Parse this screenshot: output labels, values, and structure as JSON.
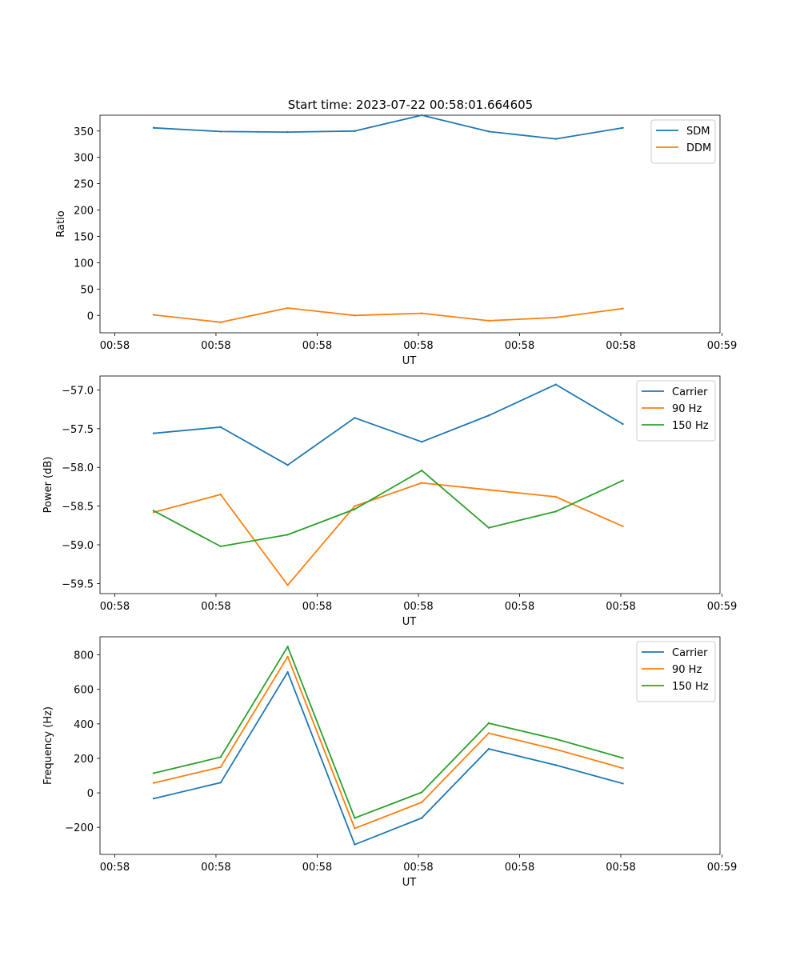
{
  "figure": {
    "title": "Start time: 2023-07-22 00:58:01.664605"
  },
  "colors": {
    "blue": "#1f77b4",
    "orange": "#ff7f0e",
    "green": "#2ca02c"
  },
  "chart_data": [
    {
      "type": "line",
      "title": "Start time: 2023-07-22 00:58:01.664605",
      "xlabel": "UT",
      "ylabel": "Ratio",
      "x": [
        1,
        2,
        3,
        4,
        5,
        6,
        7,
        8
      ],
      "xlim": [
        0.2,
        9.45
      ],
      "xticks": [
        0.42,
        1.93,
        3.44,
        4.95,
        6.46,
        7.97,
        9.48
      ],
      "xtick_labels": [
        "00:58",
        "00:58",
        "00:58",
        "00:58",
        "00:58",
        "00:58",
        "00:59"
      ],
      "ylim": [
        -33,
        380
      ],
      "yticks": [
        0,
        50,
        100,
        150,
        200,
        250,
        300,
        350
      ],
      "ytick_labels": [
        "0",
        "50",
        "100",
        "150",
        "200",
        "250",
        "300",
        "350"
      ],
      "legend_position": "top-right",
      "series": [
        {
          "name": "SDM",
          "color": "#1f77b4",
          "values": [
            356,
            349,
            348,
            350,
            380,
            349,
            335,
            356
          ]
        },
        {
          "name": "DDM",
          "color": "#ff7f0e",
          "values": [
            1,
            -13,
            14,
            0,
            4,
            -10,
            -4,
            13
          ]
        }
      ]
    },
    {
      "type": "line",
      "title": "",
      "xlabel": "UT",
      "ylabel": "Power (dB)",
      "x": [
        1,
        2,
        3,
        4,
        5,
        6,
        7,
        8
      ],
      "xlim": [
        0.2,
        9.45
      ],
      "xticks": [
        0.42,
        1.93,
        3.44,
        4.95,
        6.46,
        7.97,
        9.48
      ],
      "xtick_labels": [
        "00:58",
        "00:58",
        "00:58",
        "00:58",
        "00:58",
        "00:58",
        "00:59"
      ],
      "ylim": [
        -59.63,
        -56.82
      ],
      "yticks": [
        -59.5,
        -59.0,
        -58.5,
        -58.0,
        -57.5,
        -57.0
      ],
      "ytick_labels": [
        "−59.5",
        "−59.0",
        "−58.5",
        "−58.0",
        "−57.5",
        "−57.0"
      ],
      "legend_position": "top-right",
      "series": [
        {
          "name": "Carrier",
          "color": "#1f77b4",
          "values": [
            -57.56,
            -57.48,
            -57.97,
            -57.36,
            -57.67,
            -57.33,
            -56.93,
            -57.44
          ]
        },
        {
          "name": "90 Hz",
          "color": "#ff7f0e",
          "values": [
            -58.58,
            -58.35,
            -59.52,
            -58.5,
            -58.2,
            -58.29,
            -58.38,
            -58.76
          ]
        },
        {
          "name": "150 Hz",
          "color": "#2ca02c",
          "values": [
            -58.56,
            -59.02,
            -58.87,
            -58.54,
            -58.04,
            -58.78,
            -58.57,
            -58.17
          ]
        }
      ]
    },
    {
      "type": "line",
      "title": "",
      "xlabel": "UT",
      "ylabel": "Frequency (Hz)",
      "x": [
        1,
        2,
        3,
        4,
        5,
        6,
        7,
        8
      ],
      "xlim": [
        0.2,
        9.45
      ],
      "xticks": [
        0.42,
        1.93,
        3.44,
        4.95,
        6.46,
        7.97,
        9.48
      ],
      "xtick_labels": [
        "00:58",
        "00:58",
        "00:58",
        "00:58",
        "00:58",
        "00:58",
        "00:59"
      ],
      "ylim": [
        -357,
        905
      ],
      "yticks": [
        -200,
        0,
        200,
        400,
        600,
        800
      ],
      "ytick_labels": [
        "−200",
        "0",
        "200",
        "400",
        "600",
        "800"
      ],
      "legend_position": "top-right",
      "series": [
        {
          "name": "Carrier",
          "color": "#1f77b4",
          "values": [
            -33,
            59,
            700,
            -300,
            -146,
            255,
            161,
            54
          ]
        },
        {
          "name": "90 Hz",
          "color": "#ff7f0e",
          "values": [
            57,
            149,
            790,
            -206,
            -55,
            346,
            252,
            143
          ]
        },
        {
          "name": "150 Hz",
          "color": "#2ca02c",
          "values": [
            114,
            207,
            848,
            -146,
            3,
            404,
            312,
            202
          ]
        }
      ]
    }
  ]
}
